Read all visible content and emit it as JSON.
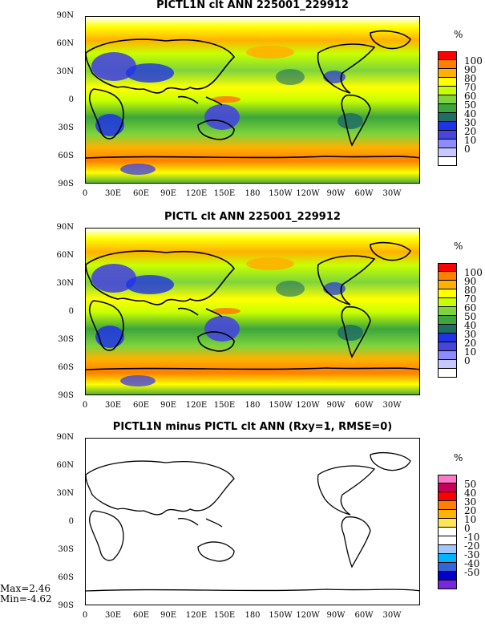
{
  "panels": [
    {
      "title": "PICTL1N clt ANN 225001_229912",
      "unit": "%",
      "scheme": "field"
    },
    {
      "title": "PICTL clt ANN 225001_229912",
      "unit": "%",
      "scheme": "field"
    },
    {
      "title": "PICTL1N minus PICTL clt ANN (Rxy=1, RMSE=0)",
      "unit": "%",
      "scheme": "diff"
    }
  ],
  "lat_labels": [
    "90N",
    "60N",
    "30N",
    "0",
    "30S",
    "60S",
    "90S"
  ],
  "lon_labels": [
    "0",
    "30E",
    "60E",
    "90E",
    "120E",
    "150E",
    "180",
    "150W",
    "120W",
    "90W",
    "60W",
    "30W"
  ],
  "field_legend": {
    "labels": [
      "100",
      "90",
      "80",
      "70",
      "60",
      "50",
      "40",
      "30",
      "20",
      "10",
      "0"
    ],
    "colors": [
      "#ff0000",
      "#ff7f00",
      "#ffb000",
      "#ffff00",
      "#c8ff00",
      "#7fd43c",
      "#3ca53c",
      "#1e6e64",
      "#1e32e6",
      "#4646dc",
      "#8c8cff",
      "#c8c8ff",
      "#ffffff"
    ]
  },
  "diff_legend": {
    "labels": [
      "50",
      "40",
      "30",
      "20",
      "10",
      "0",
      "-10",
      "-20",
      "-30",
      "-40",
      "-50"
    ],
    "colors": [
      "#ff78c8",
      "#c8005a",
      "#ff0000",
      "#ff7f00",
      "#ffb400",
      "#ffe650",
      "#ffffff",
      "#ffffff",
      "#a0c8ff",
      "#00b4ff",
      "#3264dc",
      "#0000c8",
      "#7828dc"
    ]
  },
  "stats": {
    "max": "Max=2.46",
    "min": "Min=-4.62"
  }
}
